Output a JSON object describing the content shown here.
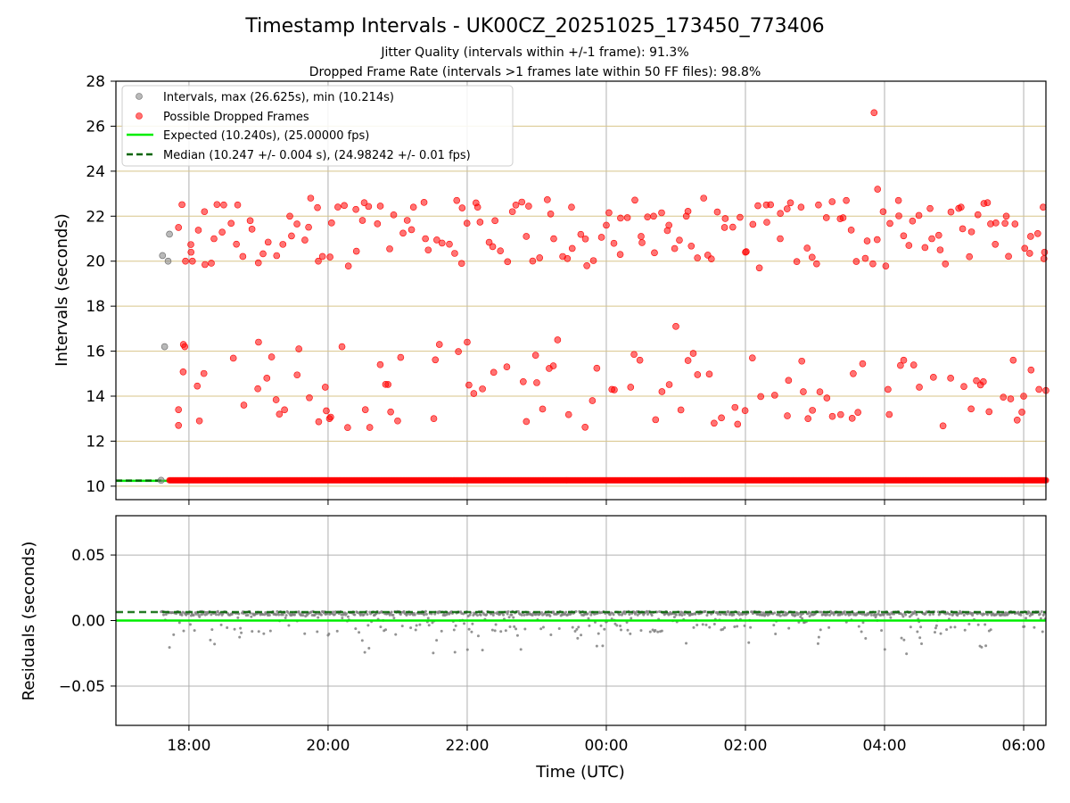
{
  "chart_data": [
    {
      "type": "scatter",
      "title": "Timestamp Intervals - UK00CZ_20251025_173450_773406",
      "subtitle_lines": [
        "Jitter Quality (intervals within +/-1 frame): 91.3%",
        "Dropped Frame Rate (intervals >1 frames late within 50 FF files): 98.8%"
      ],
      "xlabel": "Time (UTC)",
      "ylabel": "Intervals (seconds)",
      "xlim_hours": [
        16.95,
        30.32
      ],
      "ylim": [
        9.4,
        28
      ],
      "x_ticks": [
        {
          "h": 18,
          "label": "18:00"
        },
        {
          "h": 20,
          "label": "20:00"
        },
        {
          "h": 22,
          "label": "22:00"
        },
        {
          "h": 24,
          "label": "00:00"
        },
        {
          "h": 26,
          "label": "02:00"
        },
        {
          "h": 28,
          "label": "04:00"
        },
        {
          "h": 30,
          "label": "06:00"
        }
      ],
      "y_ticks": [
        {
          "v": 10,
          "label": "10"
        },
        {
          "v": 12,
          "label": "12"
        },
        {
          "v": 14,
          "label": "14"
        },
        {
          "v": 16,
          "label": "16"
        },
        {
          "v": 18,
          "label": "18"
        },
        {
          "v": 20,
          "label": "20"
        },
        {
          "v": 22,
          "label": "22"
        },
        {
          "v": 24,
          "label": "24"
        },
        {
          "v": 26,
          "label": "26"
        },
        {
          "v": 28,
          "label": "28"
        }
      ],
      "grid": true,
      "legend_position": "top-left",
      "legend": [
        {
          "label": "Intervals, max (26.625s), min (10.214s)",
          "kind": "marker",
          "color": "#808080"
        },
        {
          "label": "Possible Dropped Frames",
          "kind": "marker",
          "color": "#ff0000"
        },
        {
          "label": "Expected (10.240s), (25.00000 fps)",
          "kind": "line",
          "color": "#00ee00"
        },
        {
          "label": "Median (10.247 +/- 0.004 s), (24.98242 +/- 0.01 fps)",
          "kind": "dashed",
          "color": "#006400"
        }
      ],
      "expected_interval": 10.24,
      "median_interval": 10.247,
      "baseline_interval": 10.26,
      "baseline_start_hour": 17.72,
      "baseline_end_hour": 30.32,
      "early_normal_points": [
        [
          17.6,
          10.26
        ],
        [
          17.62,
          20.25
        ],
        [
          17.65,
          16.2
        ],
        [
          17.7,
          20.0
        ],
        [
          17.72,
          21.2
        ]
      ],
      "dropped_points_sample": [
        [
          17.85,
          21.5
        ],
        [
          17.85,
          12.7
        ],
        [
          17.85,
          13.4
        ],
        [
          17.92,
          16.3
        ],
        [
          17.94,
          16.2
        ],
        [
          17.95,
          20.0
        ],
        [
          18.03,
          20.4
        ],
        [
          18.05,
          20.0
        ],
        [
          18.12,
          14.45
        ],
        [
          18.15,
          12.9
        ],
        [
          18.23,
          19.85
        ],
        [
          18.36,
          21.0
        ],
        [
          18.5,
          22.5
        ],
        [
          18.7,
          22.5
        ],
        [
          18.88,
          21.8
        ],
        [
          19.0,
          16.4
        ],
        [
          19.12,
          14.8
        ],
        [
          19.3,
          13.2
        ],
        [
          19.45,
          22.0
        ],
        [
          19.58,
          16.1
        ],
        [
          19.75,
          22.8
        ],
        [
          19.86,
          20.0
        ],
        [
          19.96,
          14.4
        ],
        [
          20.02,
          13.0
        ],
        [
          20.05,
          21.7
        ],
        [
          20.2,
          16.2
        ],
        [
          20.4,
          22.3
        ],
        [
          20.52,
          22.6
        ],
        [
          20.75,
          15.4
        ],
        [
          20.9,
          13.3
        ],
        [
          21.0,
          12.9
        ],
        [
          21.2,
          21.4
        ],
        [
          21.4,
          21.0
        ],
        [
          21.52,
          13.0
        ],
        [
          21.6,
          16.3
        ],
        [
          21.85,
          22.7
        ],
        [
          21.92,
          19.9
        ],
        [
          22.0,
          16.4
        ],
        [
          22.15,
          22.4
        ],
        [
          22.4,
          21.8
        ],
        [
          22.57,
          15.3
        ],
        [
          22.65,
          22.2
        ],
        [
          22.85,
          21.1
        ],
        [
          23.0,
          14.6
        ],
        [
          23.2,
          22.1
        ],
        [
          23.3,
          16.5
        ],
        [
          23.5,
          22.4
        ],
        [
          23.72,
          19.8
        ],
        [
          23.8,
          13.8
        ],
        [
          24.0,
          21.6
        ],
        [
          24.08,
          14.3
        ],
        [
          24.2,
          20.3
        ],
        [
          24.35,
          14.4
        ],
        [
          24.5,
          21.1
        ],
        [
          24.68,
          22.0
        ],
        [
          24.8,
          14.2
        ],
        [
          24.9,
          21.6
        ],
        [
          25.0,
          17.1
        ],
        [
          25.15,
          22.0
        ],
        [
          25.25,
          15.9
        ],
        [
          25.4,
          22.8
        ],
        [
          25.55,
          12.8
        ],
        [
          25.7,
          21.5
        ],
        [
          25.85,
          13.5
        ],
        [
          26.0,
          20.4
        ],
        [
          26.1,
          15.7
        ],
        [
          26.2,
          19.7
        ],
        [
          26.3,
          22.5
        ],
        [
          26.5,
          21.0
        ],
        [
          26.62,
          14.7
        ],
        [
          26.8,
          22.4
        ],
        [
          26.9,
          13.0
        ],
        [
          27.05,
          22.5
        ],
        [
          27.25,
          13.1
        ],
        [
          27.45,
          22.7
        ],
        [
          27.55,
          15.0
        ],
        [
          27.75,
          20.9
        ],
        [
          27.85,
          26.6
        ],
        [
          27.9,
          23.2
        ],
        [
          27.98,
          22.2
        ],
        [
          28.05,
          14.3
        ],
        [
          28.2,
          22.7
        ],
        [
          28.35,
          20.7
        ],
        [
          28.5,
          14.4
        ],
        [
          28.68,
          21.0
        ],
        [
          28.8,
          20.5
        ],
        [
          28.95,
          14.8
        ],
        [
          29.1,
          22.4
        ],
        [
          29.22,
          20.2
        ],
        [
          29.38,
          14.5
        ],
        [
          29.48,
          22.6
        ],
        [
          29.6,
          21.7
        ],
        [
          29.75,
          22.0
        ],
        [
          29.85,
          15.6
        ],
        [
          30.0,
          14.0
        ],
        [
          30.1,
          21.1
        ],
        [
          30.22,
          14.3
        ],
        [
          30.28,
          22.4
        ],
        [
          30.3,
          20.4
        ],
        [
          30.32,
          14.25
        ]
      ]
    },
    {
      "type": "scatter",
      "xlabel": "Time (UTC)",
      "ylabel": "Residuals (seconds)",
      "ylim": [
        -0.08,
        0.08
      ],
      "y_ticks": [
        {
          "v": 0.05,
          "label": "0.05"
        },
        {
          "v": 0.0,
          "label": "0.00"
        },
        {
          "v": -0.05,
          "label": "−0.05"
        }
      ],
      "expected_residual": 0.0,
      "median_residual": 0.0065,
      "residual_band_upper": 0.007,
      "residual_band_lower": 0.004,
      "residual_min_shown": -0.026
    }
  ]
}
